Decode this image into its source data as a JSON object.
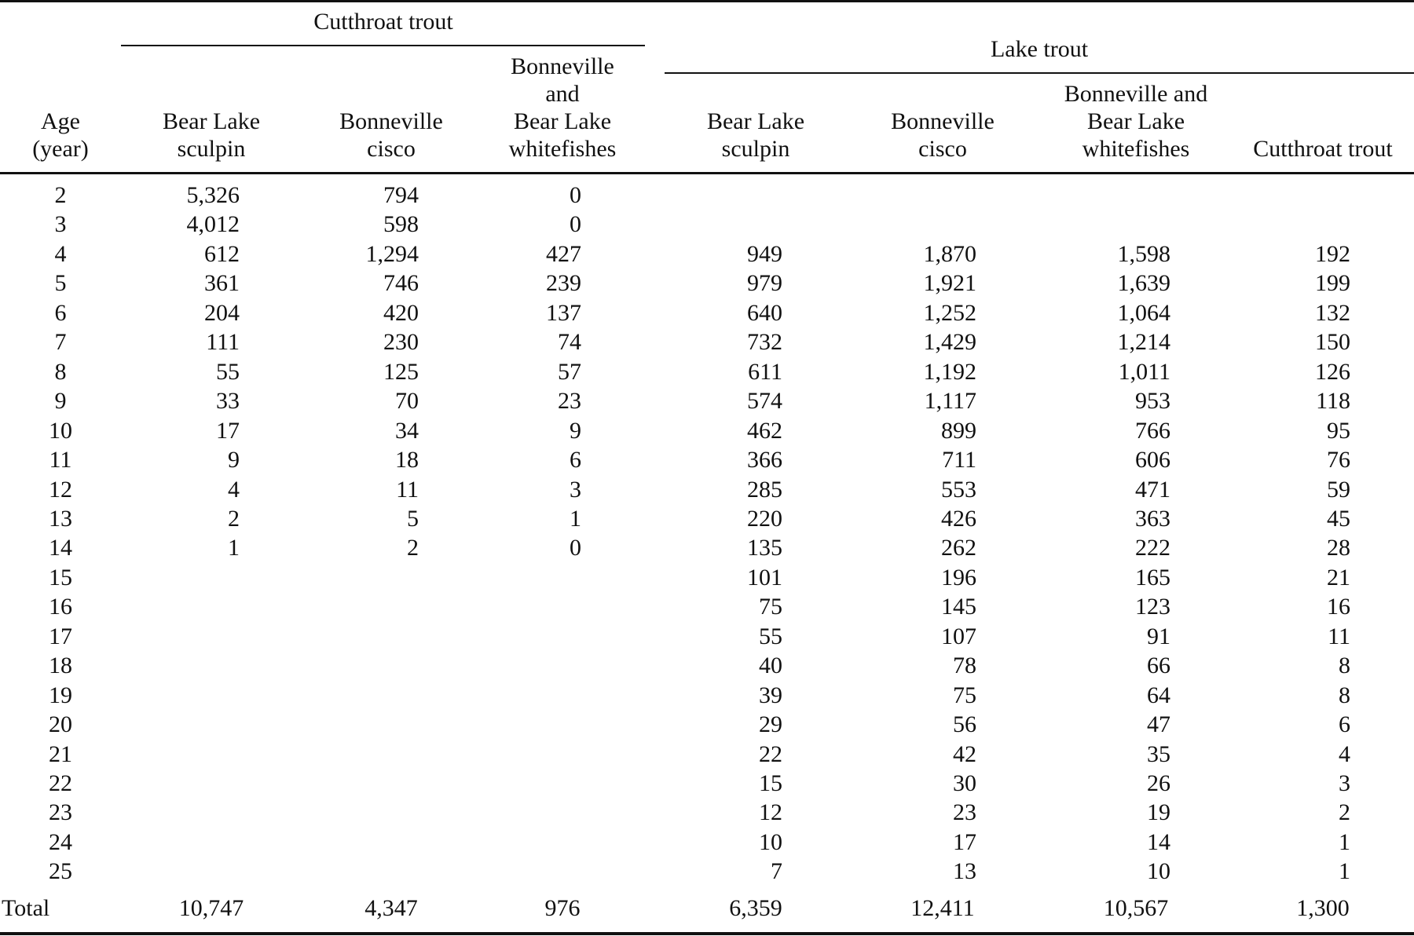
{
  "table": {
    "groups": {
      "cutthroat": "Cutthroat trout",
      "lake": "Lake trout"
    },
    "columns": {
      "age": [
        "Age",
        "(year)"
      ],
      "ct_sculpin": [
        "Bear Lake",
        "sculpin"
      ],
      "ct_cisco": [
        "Bonneville",
        "cisco"
      ],
      "ct_white": [
        "Bonneville",
        "and",
        "Bear Lake",
        "whitefishes"
      ],
      "lt_sculpin": [
        "Bear Lake",
        "sculpin"
      ],
      "lt_cisco": [
        "Bonneville",
        "cisco"
      ],
      "lt_white": [
        "Bonneville and",
        "Bear Lake",
        "whitefishes"
      ],
      "lt_trout": [
        "Cutthroat trout"
      ]
    },
    "rows": [
      {
        "age": "2",
        "ct_sculpin": "5,326",
        "ct_cisco": "794",
        "ct_white": "0",
        "lt_sculpin": "",
        "lt_cisco": "",
        "lt_white": "",
        "lt_trout": ""
      },
      {
        "age": "3",
        "ct_sculpin": "4,012",
        "ct_cisco": "598",
        "ct_white": "0",
        "lt_sculpin": "",
        "lt_cisco": "",
        "lt_white": "",
        "lt_trout": ""
      },
      {
        "age": "4",
        "ct_sculpin": "612",
        "ct_cisco": "1,294",
        "ct_white": "427",
        "lt_sculpin": "949",
        "lt_cisco": "1,870",
        "lt_white": "1,598",
        "lt_trout": "192"
      },
      {
        "age": "5",
        "ct_sculpin": "361",
        "ct_cisco": "746",
        "ct_white": "239",
        "lt_sculpin": "979",
        "lt_cisco": "1,921",
        "lt_white": "1,639",
        "lt_trout": "199"
      },
      {
        "age": "6",
        "ct_sculpin": "204",
        "ct_cisco": "420",
        "ct_white": "137",
        "lt_sculpin": "640",
        "lt_cisco": "1,252",
        "lt_white": "1,064",
        "lt_trout": "132"
      },
      {
        "age": "7",
        "ct_sculpin": "111",
        "ct_cisco": "230",
        "ct_white": "74",
        "lt_sculpin": "732",
        "lt_cisco": "1,429",
        "lt_white": "1,214",
        "lt_trout": "150"
      },
      {
        "age": "8",
        "ct_sculpin": "55",
        "ct_cisco": "125",
        "ct_white": "57",
        "lt_sculpin": "611",
        "lt_cisco": "1,192",
        "lt_white": "1,011",
        "lt_trout": "126"
      },
      {
        "age": "9",
        "ct_sculpin": "33",
        "ct_cisco": "70",
        "ct_white": "23",
        "lt_sculpin": "574",
        "lt_cisco": "1,117",
        "lt_white": "953",
        "lt_trout": "118"
      },
      {
        "age": "10",
        "ct_sculpin": "17",
        "ct_cisco": "34",
        "ct_white": "9",
        "lt_sculpin": "462",
        "lt_cisco": "899",
        "lt_white": "766",
        "lt_trout": "95"
      },
      {
        "age": "11",
        "ct_sculpin": "9",
        "ct_cisco": "18",
        "ct_white": "6",
        "lt_sculpin": "366",
        "lt_cisco": "711",
        "lt_white": "606",
        "lt_trout": "76"
      },
      {
        "age": "12",
        "ct_sculpin": "4",
        "ct_cisco": "11",
        "ct_white": "3",
        "lt_sculpin": "285",
        "lt_cisco": "553",
        "lt_white": "471",
        "lt_trout": "59"
      },
      {
        "age": "13",
        "ct_sculpin": "2",
        "ct_cisco": "5",
        "ct_white": "1",
        "lt_sculpin": "220",
        "lt_cisco": "426",
        "lt_white": "363",
        "lt_trout": "45"
      },
      {
        "age": "14",
        "ct_sculpin": "1",
        "ct_cisco": "2",
        "ct_white": "0",
        "lt_sculpin": "135",
        "lt_cisco": "262",
        "lt_white": "222",
        "lt_trout": "28"
      },
      {
        "age": "15",
        "ct_sculpin": "",
        "ct_cisco": "",
        "ct_white": "",
        "lt_sculpin": "101",
        "lt_cisco": "196",
        "lt_white": "165",
        "lt_trout": "21"
      },
      {
        "age": "16",
        "ct_sculpin": "",
        "ct_cisco": "",
        "ct_white": "",
        "lt_sculpin": "75",
        "lt_cisco": "145",
        "lt_white": "123",
        "lt_trout": "16"
      },
      {
        "age": "17",
        "ct_sculpin": "",
        "ct_cisco": "",
        "ct_white": "",
        "lt_sculpin": "55",
        "lt_cisco": "107",
        "lt_white": "91",
        "lt_trout": "11"
      },
      {
        "age": "18",
        "ct_sculpin": "",
        "ct_cisco": "",
        "ct_white": "",
        "lt_sculpin": "40",
        "lt_cisco": "78",
        "lt_white": "66",
        "lt_trout": "8"
      },
      {
        "age": "19",
        "ct_sculpin": "",
        "ct_cisco": "",
        "ct_white": "",
        "lt_sculpin": "39",
        "lt_cisco": "75",
        "lt_white": "64",
        "lt_trout": "8"
      },
      {
        "age": "20",
        "ct_sculpin": "",
        "ct_cisco": "",
        "ct_white": "",
        "lt_sculpin": "29",
        "lt_cisco": "56",
        "lt_white": "47",
        "lt_trout": "6"
      },
      {
        "age": "21",
        "ct_sculpin": "",
        "ct_cisco": "",
        "ct_white": "",
        "lt_sculpin": "22",
        "lt_cisco": "42",
        "lt_white": "35",
        "lt_trout": "4"
      },
      {
        "age": "22",
        "ct_sculpin": "",
        "ct_cisco": "",
        "ct_white": "",
        "lt_sculpin": "15",
        "lt_cisco": "30",
        "lt_white": "26",
        "lt_trout": "3"
      },
      {
        "age": "23",
        "ct_sculpin": "",
        "ct_cisco": "",
        "ct_white": "",
        "lt_sculpin": "12",
        "lt_cisco": "23",
        "lt_white": "19",
        "lt_trout": "2"
      },
      {
        "age": "24",
        "ct_sculpin": "",
        "ct_cisco": "",
        "ct_white": "",
        "lt_sculpin": "10",
        "lt_cisco": "17",
        "lt_white": "14",
        "lt_trout": "1"
      },
      {
        "age": "25",
        "ct_sculpin": "",
        "ct_cisco": "",
        "ct_white": "",
        "lt_sculpin": "7",
        "lt_cisco": "13",
        "lt_white": "10",
        "lt_trout": "1"
      }
    ],
    "total": {
      "age": "Total",
      "ct_sculpin": "10,747",
      "ct_cisco": "4,347",
      "ct_white": "976",
      "lt_sculpin": "6,359",
      "lt_cisco": "12,411",
      "lt_white": "10,567",
      "lt_trout": "1,300"
    }
  }
}
